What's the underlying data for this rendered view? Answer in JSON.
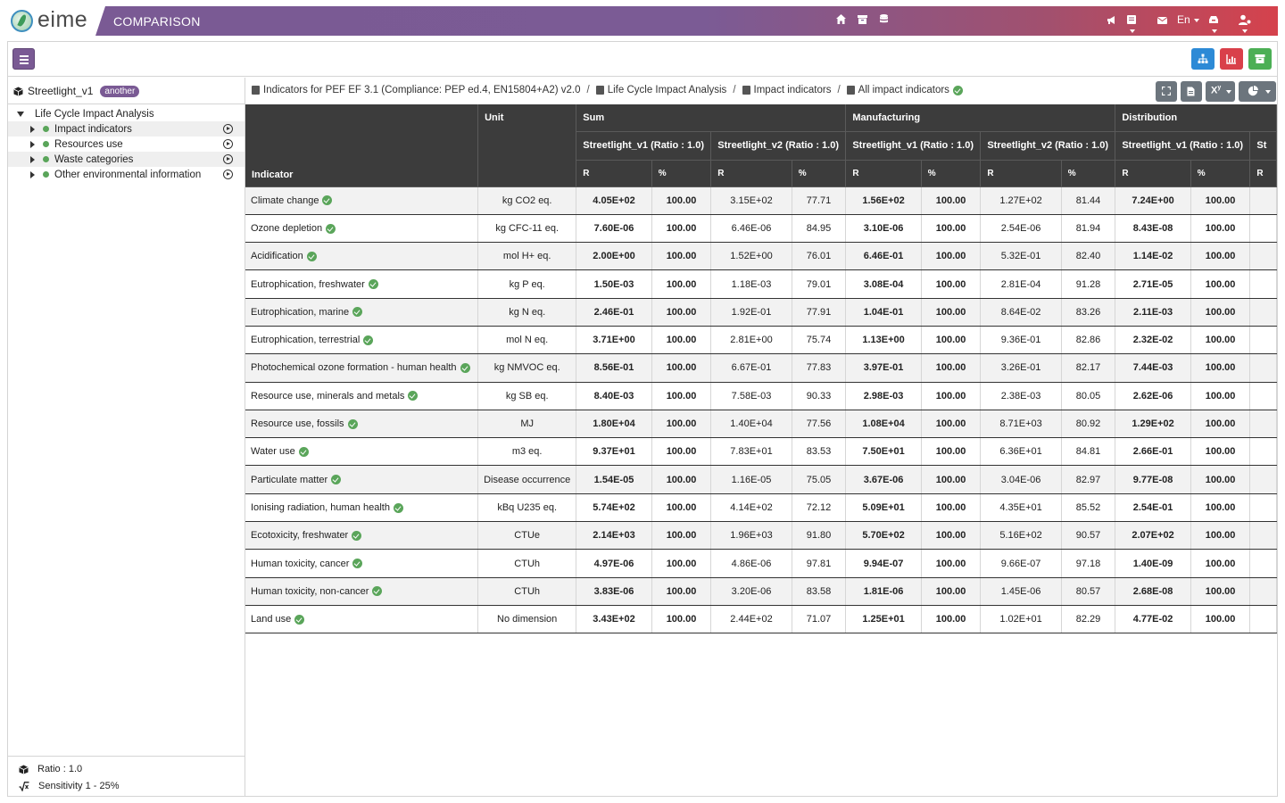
{
  "topbar": {
    "logo_text": "eime",
    "app_title": "COMPARISON",
    "language": "En",
    "nav_icons": [
      "home-icon",
      "archive-icon",
      "database-icon"
    ],
    "right_icons": [
      "bullhorn-icon",
      "list-icon",
      "mail-icon",
      "inbox-icon",
      "user-cog-icon"
    ]
  },
  "sidebar": {
    "project_name": "Streetlight_v1",
    "project_badge": "another",
    "tree_root": "Life Cycle Impact Analysis",
    "tree_items": [
      {
        "label": "Impact indicators"
      },
      {
        "label": "Resources use"
      },
      {
        "label": "Waste categories"
      },
      {
        "label": "Other environmental information"
      }
    ],
    "footer": {
      "ratio": "Ratio : 1.0",
      "sensitivity": "Sensitivity 1 - 25%"
    }
  },
  "breadcrumb": [
    "Indicators for PEF EF 3.1 (Compliance: PEP ed.4, EN15804+A2) v2.0",
    "Life Cycle Impact Analysis",
    "Impact indicators",
    "All impact indicators"
  ],
  "table": {
    "col_indicator": "Indicator",
    "col_unit": "Unit",
    "groups": [
      "Sum",
      "Manufacturing",
      "Distribution"
    ],
    "scenarios": [
      "Streetlight_v1 (Ratio : 1.0)",
      "Streetlight_v2 (Ratio : 1.0)",
      "Streetlight_v1 (Ratio : 1.0)",
      "Streetlight_v2 (Ratio : 1.0)",
      "Streetlight_v1 (Ratio : 1.0)",
      "St"
    ],
    "value_headers": [
      "R",
      "%",
      "R",
      "%",
      "R",
      "%",
      "R",
      "%",
      "R",
      "%",
      "R"
    ],
    "rows": [
      {
        "indicator": "Climate change",
        "unit": "kg CO2 eq.",
        "values": [
          "4.05E+02",
          "100.00",
          "3.15E+02",
          "77.71",
          "1.56E+02",
          "100.00",
          "1.27E+02",
          "81.44",
          "7.24E+00",
          "100.00",
          ""
        ]
      },
      {
        "indicator": "Ozone depletion",
        "unit": "kg CFC-11 eq.",
        "values": [
          "7.60E-06",
          "100.00",
          "6.46E-06",
          "84.95",
          "3.10E-06",
          "100.00",
          "2.54E-06",
          "81.94",
          "8.43E-08",
          "100.00",
          ""
        ]
      },
      {
        "indicator": "Acidification",
        "unit": "mol H+ eq.",
        "values": [
          "2.00E+00",
          "100.00",
          "1.52E+00",
          "76.01",
          "6.46E-01",
          "100.00",
          "5.32E-01",
          "82.40",
          "1.14E-02",
          "100.00",
          ""
        ]
      },
      {
        "indicator": "Eutrophication, freshwater",
        "unit": "kg P eq.",
        "values": [
          "1.50E-03",
          "100.00",
          "1.18E-03",
          "79.01",
          "3.08E-04",
          "100.00",
          "2.81E-04",
          "91.28",
          "2.71E-05",
          "100.00",
          ""
        ]
      },
      {
        "indicator": "Eutrophication, marine",
        "unit": "kg N eq.",
        "values": [
          "2.46E-01",
          "100.00",
          "1.92E-01",
          "77.91",
          "1.04E-01",
          "100.00",
          "8.64E-02",
          "83.26",
          "2.11E-03",
          "100.00",
          ""
        ]
      },
      {
        "indicator": "Eutrophication, terrestrial",
        "unit": "mol N eq.",
        "values": [
          "3.71E+00",
          "100.00",
          "2.81E+00",
          "75.74",
          "1.13E+00",
          "100.00",
          "9.36E-01",
          "82.86",
          "2.32E-02",
          "100.00",
          ""
        ]
      },
      {
        "indicator": "Photochemical ozone formation - human health",
        "unit": "kg NMVOC eq.",
        "values": [
          "8.56E-01",
          "100.00",
          "6.67E-01",
          "77.83",
          "3.97E-01",
          "100.00",
          "3.26E-01",
          "82.17",
          "7.44E-03",
          "100.00",
          ""
        ]
      },
      {
        "indicator": "Resource use, minerals and metals",
        "unit": "kg SB eq.",
        "values": [
          "8.40E-03",
          "100.00",
          "7.58E-03",
          "90.33",
          "2.98E-03",
          "100.00",
          "2.38E-03",
          "80.05",
          "2.62E-06",
          "100.00",
          ""
        ]
      },
      {
        "indicator": "Resource use, fossils",
        "unit": "MJ",
        "values": [
          "1.80E+04",
          "100.00",
          "1.40E+04",
          "77.56",
          "1.08E+04",
          "100.00",
          "8.71E+03",
          "80.92",
          "1.29E+02",
          "100.00",
          ""
        ]
      },
      {
        "indicator": "Water use",
        "unit": "m3 eq.",
        "values": [
          "9.37E+01",
          "100.00",
          "7.83E+01",
          "83.53",
          "7.50E+01",
          "100.00",
          "6.36E+01",
          "84.81",
          "2.66E-01",
          "100.00",
          ""
        ]
      },
      {
        "indicator": "Particulate matter",
        "unit": "Disease occurrence",
        "values": [
          "1.54E-05",
          "100.00",
          "1.16E-05",
          "75.05",
          "3.67E-06",
          "100.00",
          "3.04E-06",
          "82.97",
          "9.77E-08",
          "100.00",
          ""
        ]
      },
      {
        "indicator": "Ionising radiation, human health",
        "unit": "kBq U235 eq.",
        "values": [
          "5.74E+02",
          "100.00",
          "4.14E+02",
          "72.12",
          "5.09E+01",
          "100.00",
          "4.35E+01",
          "85.52",
          "2.54E-01",
          "100.00",
          ""
        ]
      },
      {
        "indicator": "Ecotoxicity, freshwater",
        "unit": "CTUe",
        "values": [
          "2.14E+03",
          "100.00",
          "1.96E+03",
          "91.80",
          "5.70E+02",
          "100.00",
          "5.16E+02",
          "90.57",
          "2.07E+02",
          "100.00",
          ""
        ]
      },
      {
        "indicator": "Human toxicity, cancer",
        "unit": "CTUh",
        "values": [
          "4.97E-06",
          "100.00",
          "4.86E-06",
          "97.81",
          "9.94E-07",
          "100.00",
          "9.66E-07",
          "97.18",
          "1.40E-09",
          "100.00",
          ""
        ]
      },
      {
        "indicator": "Human toxicity, non-cancer",
        "unit": "CTUh",
        "values": [
          "3.83E-06",
          "100.00",
          "3.20E-06",
          "83.58",
          "1.81E-06",
          "100.00",
          "1.45E-06",
          "80.57",
          "2.68E-08",
          "100.00",
          ""
        ]
      },
      {
        "indicator": "Land use",
        "unit": "No dimension",
        "values": [
          "3.43E+02",
          "100.00",
          "2.44E+02",
          "71.07",
          "1.25E+01",
          "100.00",
          "1.02E+01",
          "82.29",
          "4.77E-02",
          "100.00",
          ""
        ]
      }
    ]
  },
  "colors": {
    "brand_purple": "#7a5a94",
    "brand_red": "#d5424c",
    "header_dark": "#3c3c3c",
    "status_green": "#5aa55a",
    "btn_blue": "#2d8ad6",
    "btn_red": "#d9404a",
    "btn_green": "#4caf55",
    "btn_grey": "#6c757d"
  }
}
